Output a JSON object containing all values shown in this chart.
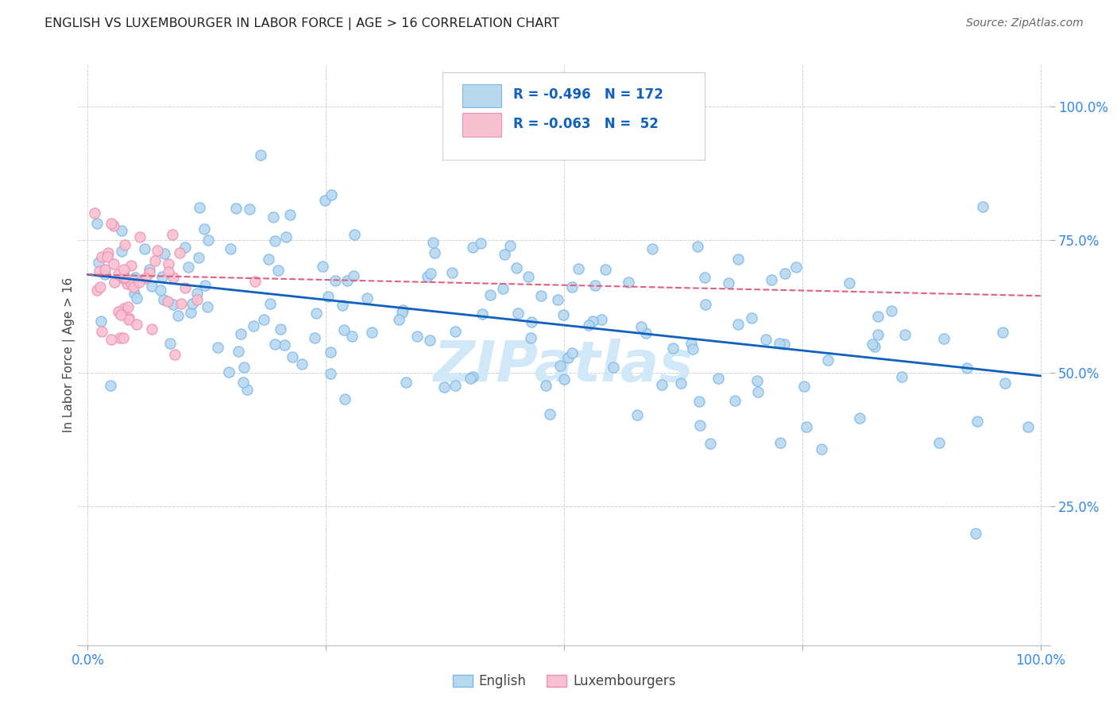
{
  "title": "ENGLISH VS LUXEMBOURGER IN LABOR FORCE | AGE > 16 CORRELATION CHART",
  "source": "Source: ZipAtlas.com",
  "ylabel": "In Labor Force | Age > 16",
  "english_color_edge": "#7ab8e8",
  "english_color_face": "#b8d8f0",
  "lux_color_edge": "#f090b0",
  "lux_color_face": "#f8c0d0",
  "trendline_english_color": "#1060c0",
  "trendline_lux_color": "#e06080",
  "legend_box_color": "#e8e8f8",
  "legend_text_color": "#1060c0",
  "ytick_color": "#3388ee",
  "xtick_color": "#3388ee",
  "watermark_color": "#d0e8f8",
  "eng_trend_x0": 0.0,
  "eng_trend_y0": 0.685,
  "eng_trend_x1": 1.0,
  "eng_trend_y1": 0.495,
  "lux_trend_x0": 0.0,
  "lux_trend_y0": 0.685,
  "lux_trend_x1": 1.0,
  "lux_trend_y1": 0.645,
  "xlim": [
    -0.01,
    1.01
  ],
  "ylim": [
    -0.01,
    1.08
  ],
  "grid_color": "#cccccc",
  "spine_color": "#cccccc"
}
